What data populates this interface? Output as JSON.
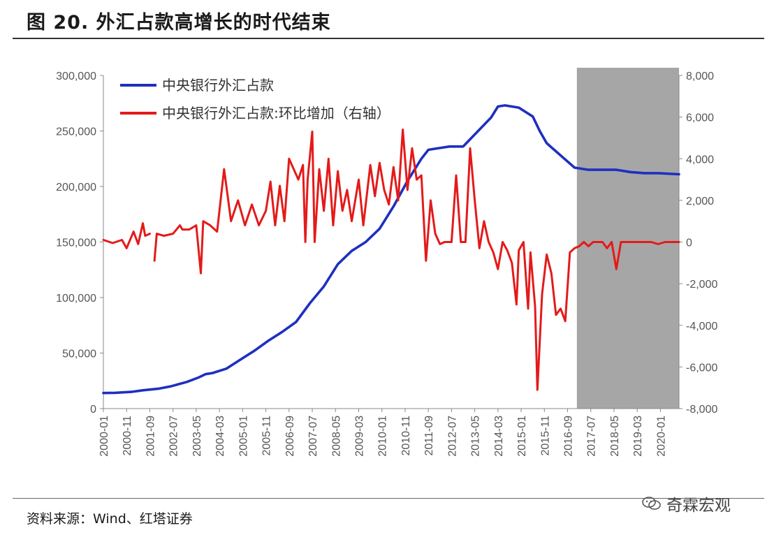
{
  "figure_title": "图 20. 外汇占款高增长的时代结束",
  "source": "资料来源：Wind、红塔证券",
  "watermark": "奇霖宏观",
  "chart_data": {
    "type": "line",
    "left_axis": {
      "ylim": [
        0,
        300000
      ],
      "ticks": [
        "300,000",
        "250,000",
        "200,000",
        "150,000",
        "100,000",
        "50,000",
        "0"
      ]
    },
    "right_axis": {
      "ylim": [
        -8000,
        8000
      ],
      "ticks": [
        "8,000",
        "6,000",
        "4,000",
        "2,000",
        "0",
        "-2,000",
        "-4,000",
        "-6,000",
        "-8,000"
      ]
    },
    "x_ticks": [
      "2000-01",
      "2000-11",
      "2001-09",
      "2002-07",
      "2003-05",
      "2004-03",
      "2005-01",
      "2005-11",
      "2006-09",
      "2007-07",
      "2008-05",
      "2009-03",
      "2010-01",
      "2010-11",
      "2011-09",
      "2012-07",
      "2013-05",
      "2014-03",
      "2015-01",
      "2015-11",
      "2016-09",
      "2017-07",
      "2018-05",
      "2019-03",
      "2020-01"
    ],
    "x_range": [
      "2000-01",
      "2020-09"
    ],
    "shaded_region": {
      "from": "2017-01",
      "to": "2020-09",
      "color": "#a6a6a6"
    },
    "series": [
      {
        "name": "中央银行外汇占款",
        "axis": "left",
        "color": "#1f2fbf",
        "points": [
          [
            "2000-01",
            14000
          ],
          [
            "2000-06",
            14200
          ],
          [
            "2001-01",
            15000
          ],
          [
            "2001-06",
            16500
          ],
          [
            "2002-01",
            18000
          ],
          [
            "2002-06",
            20000
          ],
          [
            "2003-01",
            24000
          ],
          [
            "2003-06",
            28000
          ],
          [
            "2003-09",
            31000
          ],
          [
            "2003-12",
            32000
          ],
          [
            "2004-06",
            36000
          ],
          [
            "2004-12",
            44000
          ],
          [
            "2005-06",
            52000
          ],
          [
            "2005-12",
            61000
          ],
          [
            "2006-06",
            69000
          ],
          [
            "2006-12",
            78000
          ],
          [
            "2007-06",
            95000
          ],
          [
            "2007-12",
            110000
          ],
          [
            "2008-06",
            130000
          ],
          [
            "2008-12",
            142000
          ],
          [
            "2009-06",
            150000
          ],
          [
            "2009-12",
            162000
          ],
          [
            "2010-06",
            182000
          ],
          [
            "2010-12",
            205000
          ],
          [
            "2011-06",
            225000
          ],
          [
            "2011-09",
            233000
          ],
          [
            "2011-12",
            234000
          ],
          [
            "2012-06",
            236000
          ],
          [
            "2012-12",
            236000
          ],
          [
            "2013-06",
            249000
          ],
          [
            "2013-12",
            262000
          ],
          [
            "2014-03",
            272000
          ],
          [
            "2014-06",
            273000
          ],
          [
            "2014-12",
            271000
          ],
          [
            "2015-06",
            263000
          ],
          [
            "2015-09",
            250000
          ],
          [
            "2015-12",
            239000
          ],
          [
            "2016-06",
            228000
          ],
          [
            "2016-12",
            217000
          ],
          [
            "2017-06",
            215000
          ],
          [
            "2017-12",
            215000
          ],
          [
            "2018-06",
            215000
          ],
          [
            "2018-12",
            213000
          ],
          [
            "2019-06",
            212000
          ],
          [
            "2019-12",
            212000
          ],
          [
            "2020-09",
            211000
          ]
        ]
      },
      {
        "name": "中央银行外汇占款:环比增加（右轴）",
        "axis": "right",
        "color": "#e41a1a",
        "points": [
          [
            "2000-01",
            100
          ],
          [
            "2000-05",
            -50
          ],
          [
            "2000-09",
            100
          ],
          [
            "2000-11",
            -300
          ],
          [
            "2001-02",
            500
          ],
          [
            "2001-04",
            -100
          ],
          [
            "2001-06",
            900
          ],
          [
            "2001-07",
            300
          ],
          [
            "2001-09",
            400
          ],
          [
            "2001-10",
            null
          ],
          [
            "2001-11",
            -900
          ],
          [
            "2001-12",
            400
          ],
          [
            "2002-03",
            300
          ],
          [
            "2002-07",
            400
          ],
          [
            "2002-10",
            800
          ],
          [
            "2002-11",
            600
          ],
          [
            "2003-02",
            600
          ],
          [
            "2003-05",
            800
          ],
          [
            "2003-07",
            -1500
          ],
          [
            "2003-08",
            1000
          ],
          [
            "2003-11",
            800
          ],
          [
            "2004-02",
            500
          ],
          [
            "2004-05",
            3500
          ],
          [
            "2004-08",
            1000
          ],
          [
            "2004-11",
            2000
          ],
          [
            "2005-02",
            800
          ],
          [
            "2005-05",
            1800
          ],
          [
            "2005-08",
            800
          ],
          [
            "2005-11",
            1500
          ],
          [
            "2006-01",
            2900
          ],
          [
            "2006-03",
            800
          ],
          [
            "2006-05",
            2700
          ],
          [
            "2006-07",
            1000
          ],
          [
            "2006-09",
            4000
          ],
          [
            "2006-11",
            3500
          ],
          [
            "2007-01",
            3000
          ],
          [
            "2007-03",
            3700
          ],
          [
            "2007-04",
            0
          ],
          [
            "2007-05",
            3000
          ],
          [
            "2007-07",
            5300
          ],
          [
            "2007-08",
            0
          ],
          [
            "2007-10",
            3500
          ],
          [
            "2007-12",
            1500
          ],
          [
            "2008-02",
            4000
          ],
          [
            "2008-04",
            800
          ],
          [
            "2008-06",
            3400
          ],
          [
            "2008-08",
            1500
          ],
          [
            "2008-10",
            2500
          ],
          [
            "2008-12",
            1000
          ],
          [
            "2009-03",
            3000
          ],
          [
            "2009-05",
            800
          ],
          [
            "2009-08",
            3700
          ],
          [
            "2009-10",
            2200
          ],
          [
            "2009-12",
            3800
          ],
          [
            "2010-02",
            2500
          ],
          [
            "2010-04",
            1800
          ],
          [
            "2010-06",
            3600
          ],
          [
            "2010-08",
            2000
          ],
          [
            "2010-10",
            5400
          ],
          [
            "2010-12",
            2500
          ],
          [
            "2011-02",
            4500
          ],
          [
            "2011-04",
            3000
          ],
          [
            "2011-06",
            3200
          ],
          [
            "2011-08",
            -900
          ],
          [
            "2011-10",
            2000
          ],
          [
            "2011-12",
            400
          ],
          [
            "2012-02",
            -100
          ],
          [
            "2012-04",
            0
          ],
          [
            "2012-07",
            0
          ],
          [
            "2012-09",
            3200
          ],
          [
            "2012-11",
            0
          ],
          [
            "2013-01",
            0
          ],
          [
            "2013-03",
            4500
          ],
          [
            "2013-05",
            2000
          ],
          [
            "2013-07",
            -300
          ],
          [
            "2013-09",
            1000
          ],
          [
            "2013-11",
            0
          ],
          [
            "2014-01",
            -500
          ],
          [
            "2014-03",
            -1300
          ],
          [
            "2014-05",
            0
          ],
          [
            "2014-07",
            -400
          ],
          [
            "2014-09",
            -1000
          ],
          [
            "2014-11",
            -3000
          ],
          [
            "2014-12",
            -400
          ],
          [
            "2015-02",
            0
          ],
          [
            "2015-04",
            -3200
          ],
          [
            "2015-05",
            -500
          ],
          [
            "2015-07",
            -3100
          ],
          [
            "2015-08",
            -7100
          ],
          [
            "2015-10",
            -2500
          ],
          [
            "2015-12",
            -600
          ],
          [
            "2016-02",
            -1500
          ],
          [
            "2016-04",
            -3500
          ],
          [
            "2016-06",
            -3200
          ],
          [
            "2016-08",
            -3800
          ],
          [
            "2016-10",
            -500
          ],
          [
            "2016-12",
            -300
          ],
          [
            "2017-02",
            -200
          ],
          [
            "2017-04",
            0
          ],
          [
            "2017-06",
            -200
          ],
          [
            "2017-08",
            0
          ],
          [
            "2017-10",
            0
          ],
          [
            "2017-12",
            0
          ],
          [
            "2018-02",
            -300
          ],
          [
            "2018-04",
            0
          ],
          [
            "2018-06",
            -1300
          ],
          [
            "2018-08",
            0
          ],
          [
            "2018-10",
            0
          ],
          [
            "2018-12",
            0
          ],
          [
            "2019-03",
            0
          ],
          [
            "2019-06",
            0
          ],
          [
            "2019-09",
            0
          ],
          [
            "2019-12",
            -100
          ],
          [
            "2020-03",
            0
          ],
          [
            "2020-06",
            0
          ],
          [
            "2020-09",
            0
          ]
        ]
      }
    ]
  }
}
